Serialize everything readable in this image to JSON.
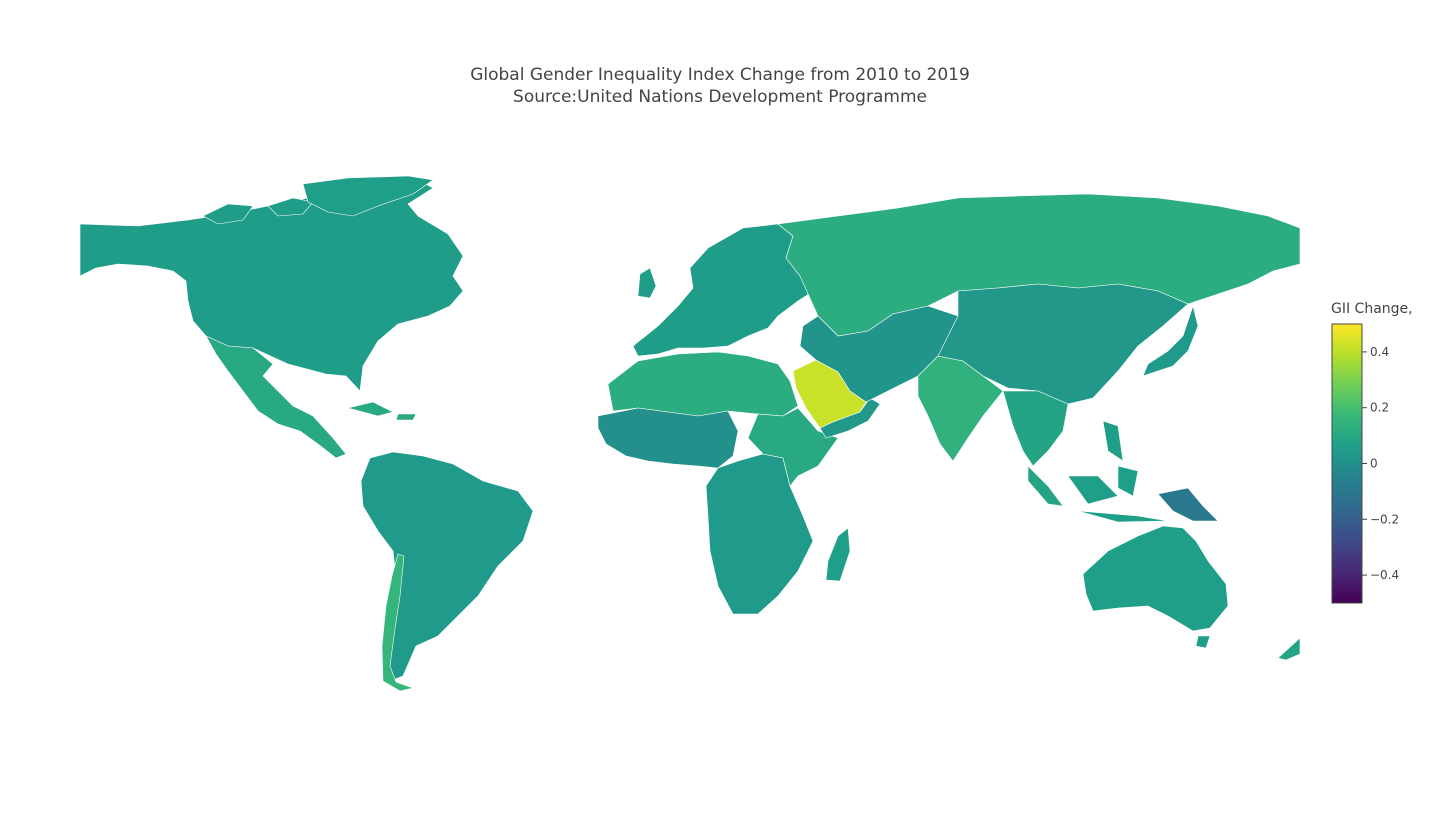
{
  "title": {
    "line1": "Global Gender Inequality Index Change from 2010 to 2019",
    "line2": "Source:United Nations Development Programme"
  },
  "colorbar": {
    "title": "GII Change,",
    "range": [
      -0.5,
      0.5
    ],
    "ticks": [
      {
        "value": 0.4,
        "label": "0.4"
      },
      {
        "value": 0.2,
        "label": "0.2"
      },
      {
        "value": 0,
        "label": "0"
      },
      {
        "value": -0.2,
        "label": "−0.2"
      },
      {
        "value": -0.4,
        "label": "−0.4"
      }
    ],
    "colorscale": "viridis",
    "stops": [
      "#440154",
      "#482878",
      "#3e4a89",
      "#31688e",
      "#26828e",
      "#1f9e89",
      "#35b779",
      "#6ece58",
      "#b5de2b",
      "#fde725"
    ]
  },
  "regions": [
    {
      "name": "north-america",
      "value": 0.05
    },
    {
      "name": "greenland",
      "value": 0.06
    },
    {
      "name": "mexico-central-america",
      "value": 0.1
    },
    {
      "name": "south-america",
      "value": 0.04
    },
    {
      "name": "chile",
      "value": 0.16
    },
    {
      "name": "europe",
      "value": 0.05
    },
    {
      "name": "russia",
      "value": 0.12
    },
    {
      "name": "north-africa",
      "value": 0.12
    },
    {
      "name": "west-africa",
      "value": 0.0
    },
    {
      "name": "central-southern-africa",
      "value": 0.04
    },
    {
      "name": "east-africa",
      "value": 0.1
    },
    {
      "name": "madagascar",
      "value": 0.06
    },
    {
      "name": "saudi-arabia",
      "value": 0.42
    },
    {
      "name": "yemen-oman",
      "value": 0.03
    },
    {
      "name": "central-asia",
      "value": 0.02
    },
    {
      "name": "china-mongolia",
      "value": 0.03
    },
    {
      "name": "india",
      "value": 0.14
    },
    {
      "name": "southeast-asia",
      "value": 0.08
    },
    {
      "name": "japan",
      "value": 0.04
    },
    {
      "name": "indonesia",
      "value": 0.06
    },
    {
      "name": "papua-new-guinea",
      "value": -0.1
    },
    {
      "name": "australia",
      "value": 0.06
    },
    {
      "name": "new-zealand",
      "value": 0.08
    }
  ]
}
